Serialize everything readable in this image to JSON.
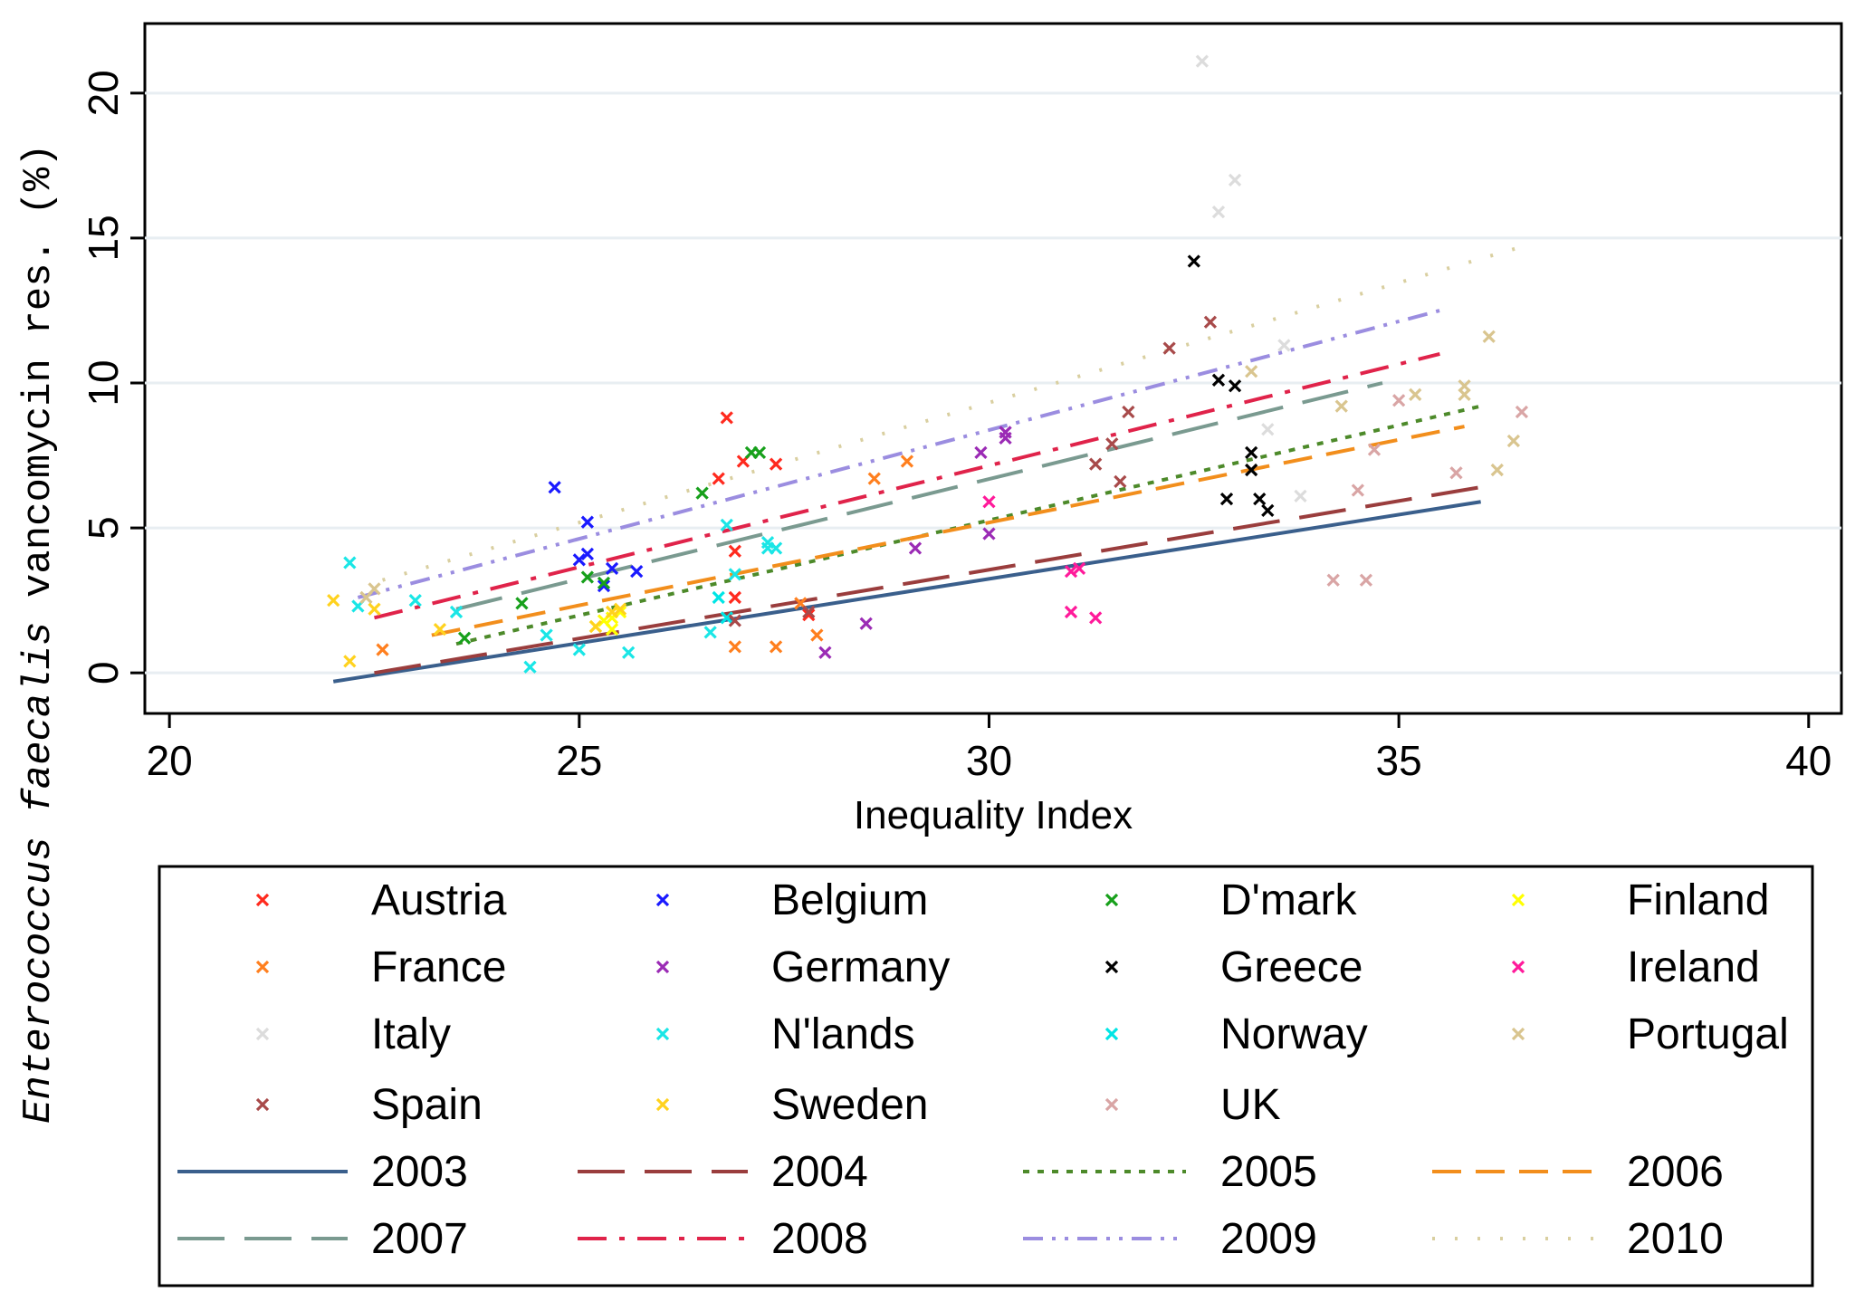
{
  "chart_data": {
    "type": "scatter",
    "title": "",
    "xlabel": "Inequality Index",
    "ylabel_italic": "Enterococcus faecalis",
    "ylabel_rest": " vancomycin res. (%)",
    "xlim": [
      19.7,
      40.4
    ],
    "ylim": [
      -1.4,
      22.4
    ],
    "xticks": [
      "20",
      "25",
      "30",
      "35",
      "40"
    ],
    "yticks": [
      "0",
      "5",
      "10",
      "15",
      "20"
    ],
    "grid": "horizontal",
    "legend_position": "bottom",
    "series": [
      {
        "name": "Austria",
        "color": "#ff2a1e",
        "points": [
          [
            26.8,
            8.8
          ],
          [
            26.7,
            6.7
          ],
          [
            27.0,
            7.3
          ],
          [
            27.4,
            7.2
          ],
          [
            26.9,
            4.2
          ],
          [
            26.9,
            2.6
          ],
          [
            27.8,
            2.0
          ]
        ]
      },
      {
        "name": "Belgium",
        "color": "#1a1aff",
        "points": [
          [
            24.7,
            6.4
          ],
          [
            25.1,
            5.2
          ],
          [
            25.1,
            4.1
          ],
          [
            25.0,
            3.9
          ],
          [
            25.4,
            3.6
          ],
          [
            25.3,
            3.0
          ],
          [
            25.7,
            3.5
          ]
        ]
      },
      {
        "name": "D'mark",
        "color": "#17a01b",
        "points": [
          [
            26.5,
            6.2
          ],
          [
            27.1,
            7.6
          ],
          [
            27.2,
            7.6
          ],
          [
            25.1,
            3.3
          ],
          [
            25.3,
            3.1
          ],
          [
            24.3,
            2.4
          ],
          [
            23.6,
            1.2
          ]
        ]
      },
      {
        "name": "Finland",
        "color": "#ffff00",
        "points": [
          [
            25.3,
            1.8
          ],
          [
            25.4,
            1.9
          ],
          [
            25.5,
            2.1
          ],
          [
            25.2,
            1.6
          ],
          [
            25.4,
            1.5
          ]
        ]
      },
      {
        "name": "France",
        "color": "#ff7f1e",
        "points": [
          [
            28.6,
            6.7
          ],
          [
            29.0,
            7.3
          ],
          [
            26.9,
            0.9
          ],
          [
            27.4,
            0.9
          ],
          [
            27.9,
            1.3
          ],
          [
            27.7,
            2.4
          ],
          [
            22.6,
            0.8
          ]
        ]
      },
      {
        "name": "Germany",
        "color": "#9b2bb5",
        "points": [
          [
            29.9,
            7.6
          ],
          [
            30.2,
            8.1
          ],
          [
            30.2,
            8.3
          ],
          [
            30.0,
            4.8
          ],
          [
            29.1,
            4.3
          ],
          [
            28.5,
            1.7
          ],
          [
            28.0,
            0.7
          ]
        ]
      },
      {
        "name": "Greece",
        "color": "#000000",
        "points": [
          [
            32.5,
            14.2
          ],
          [
            32.8,
            10.1
          ],
          [
            33.0,
            9.9
          ],
          [
            33.2,
            7.6
          ],
          [
            33.2,
            7.0
          ],
          [
            32.9,
            6.0
          ],
          [
            33.3,
            6.0
          ],
          [
            33.4,
            5.6
          ]
        ]
      },
      {
        "name": "Ireland",
        "color": "#ff1a9a",
        "points": [
          [
            31.0,
            3.5
          ],
          [
            31.1,
            3.6
          ],
          [
            31.0,
            2.1
          ],
          [
            31.3,
            1.9
          ],
          [
            30.0,
            5.9
          ]
        ]
      },
      {
        "name": "Italy",
        "color": "#dcdcdc",
        "points": [
          [
            32.6,
            21.1
          ],
          [
            33.0,
            17.0
          ],
          [
            32.8,
            15.9
          ],
          [
            33.6,
            11.3
          ],
          [
            33.4,
            8.4
          ],
          [
            33.8,
            6.1
          ]
        ]
      },
      {
        "name": "N'lands",
        "color": "#1ae6e6",
        "points": [
          [
            22.2,
            3.8
          ],
          [
            22.3,
            2.3
          ],
          [
            23.0,
            2.5
          ],
          [
            23.5,
            2.1
          ],
          [
            24.4,
            0.2
          ],
          [
            24.6,
            1.3
          ],
          [
            25.0,
            0.8
          ],
          [
            25.6,
            0.7
          ],
          [
            26.6,
            1.4
          ],
          [
            26.8,
            5.1
          ],
          [
            26.9,
            3.4
          ],
          [
            27.3,
            4.3
          ],
          [
            27.4,
            4.3
          ],
          [
            27.3,
            4.5
          ]
        ]
      },
      {
        "name": "Norway",
        "color": "#00e5e5",
        "points": [
          [
            26.7,
            2.6
          ],
          [
            26.8,
            1.9
          ]
        ]
      },
      {
        "name": "Portugal",
        "color": "#d9c58f",
        "points": [
          [
            35.2,
            9.6
          ],
          [
            35.8,
            9.6
          ],
          [
            35.8,
            9.9
          ],
          [
            36.1,
            11.6
          ],
          [
            36.2,
            7.0
          ],
          [
            36.4,
            8.0
          ],
          [
            34.3,
            9.2
          ],
          [
            33.2,
            10.4
          ],
          [
            22.4,
            2.6
          ],
          [
            22.5,
            2.9
          ]
        ]
      },
      {
        "name": "Spain",
        "color": "#a84a4a",
        "points": [
          [
            32.7,
            12.1
          ],
          [
            32.2,
            11.2
          ],
          [
            31.7,
            9.0
          ],
          [
            31.5,
            7.9
          ],
          [
            31.3,
            7.2
          ],
          [
            31.6,
            6.6
          ],
          [
            26.9,
            1.8
          ],
          [
            27.8,
            2.1
          ]
        ]
      },
      {
        "name": "Sweden",
        "color": "#ffd21e",
        "points": [
          [
            22.0,
            2.5
          ],
          [
            22.2,
            0.4
          ],
          [
            22.5,
            2.2
          ],
          [
            23.3,
            1.5
          ],
          [
            25.4,
            2.1
          ],
          [
            25.5,
            2.2
          ],
          [
            25.2,
            1.6
          ]
        ]
      },
      {
        "name": "UK",
        "color": "#d9a5a5",
        "points": [
          [
            36.5,
            9.0
          ],
          [
            35.7,
            6.9
          ],
          [
            35.0,
            9.4
          ],
          [
            34.7,
            7.7
          ],
          [
            34.5,
            6.3
          ],
          [
            34.2,
            3.2
          ],
          [
            34.6,
            3.2
          ]
        ]
      }
    ],
    "fit_lines": [
      {
        "name": "2003",
        "color": "#3a5f8c",
        "dash": "solid",
        "x": [
          22.0,
          36.0
        ],
        "y": [
          -0.3,
          5.9
        ]
      },
      {
        "name": "2004",
        "color": "#9a3d3d",
        "dash": "longdash",
        "x": [
          22.5,
          36.2
        ],
        "y": [
          0.0,
          6.5
        ]
      },
      {
        "name": "2005",
        "color": "#4d8a2a",
        "dash": "shortdash",
        "x": [
          23.5,
          36.0
        ],
        "y": [
          1.0,
          9.2
        ]
      },
      {
        "name": "2006",
        "color": "#f28e1c",
        "dash": "dash",
        "x": [
          23.2,
          35.8
        ],
        "y": [
          1.3,
          8.5
        ]
      },
      {
        "name": "2007",
        "color": "#7a9a90",
        "dash": "longdash",
        "x": [
          23.5,
          34.8
        ],
        "y": [
          2.2,
          10.0
        ]
      },
      {
        "name": "2008",
        "color": "#e0234a",
        "dash": "dashdot",
        "x": [
          22.5,
          35.5
        ],
        "y": [
          1.9,
          11.0
        ]
      },
      {
        "name": "2009",
        "color": "#9b8de0",
        "dash": "dashdots",
        "x": [
          22.3,
          35.5
        ],
        "y": [
          2.6,
          12.5
        ]
      },
      {
        "name": "2010",
        "color": "#d9cfa0",
        "dash": "dots",
        "x": [
          22.6,
          36.5
        ],
        "y": [
          3.2,
          14.7
        ]
      }
    ]
  }
}
